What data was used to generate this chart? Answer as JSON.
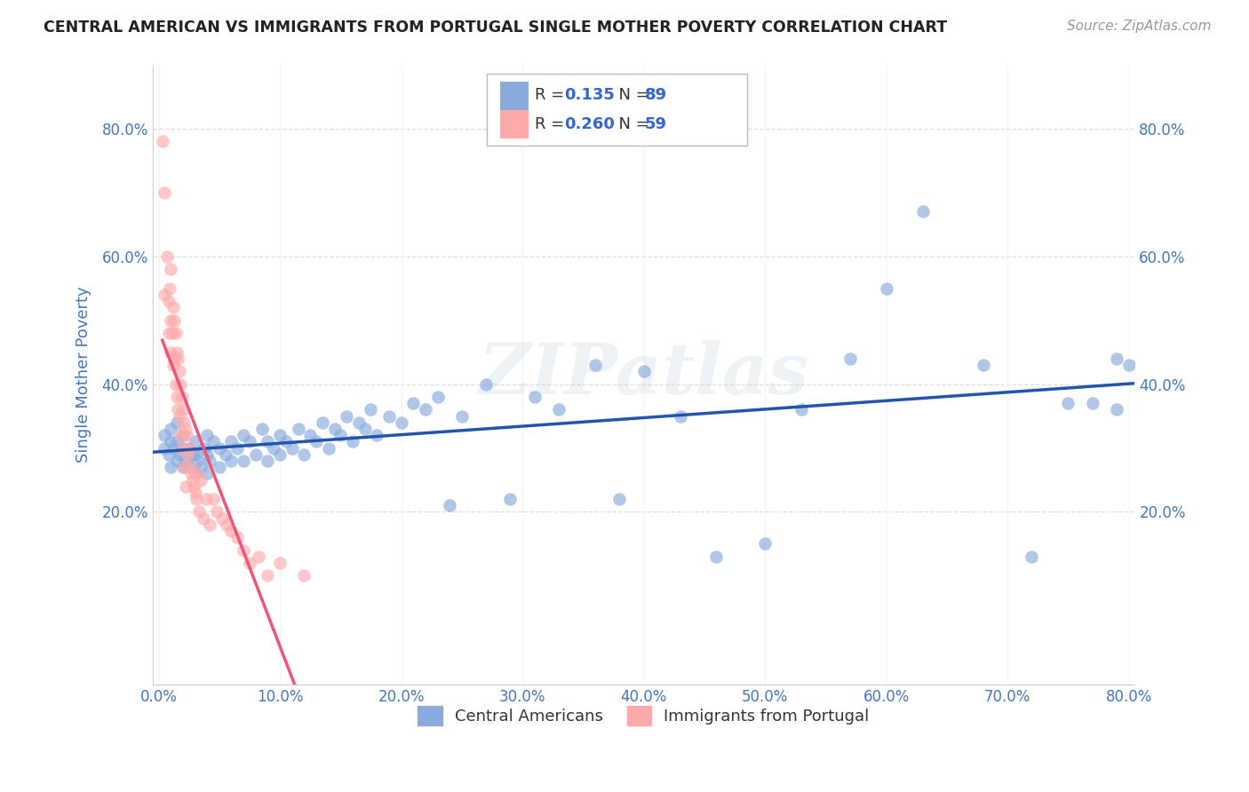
{
  "title": "CENTRAL AMERICAN VS IMMIGRANTS FROM PORTUGAL SINGLE MOTHER POVERTY CORRELATION CHART",
  "source": "Source: ZipAtlas.com",
  "ylabel": "Single Mother Poverty",
  "series1_label": "Central Americans",
  "series2_label": "Immigrants from Portugal",
  "series1_color": "#88AADD",
  "series2_color": "#FFAAAA",
  "series1_line_color": "#2255AA",
  "series2_line_color": "#EE5577",
  "series1_R": 0.135,
  "series1_N": 89,
  "series2_R": 0.26,
  "series2_N": 59,
  "xlim": [
    -0.005,
    0.805
  ],
  "ylim": [
    -0.07,
    0.9
  ],
  "xticks": [
    0.0,
    0.1,
    0.2,
    0.3,
    0.4,
    0.5,
    0.6,
    0.7,
    0.8
  ],
  "yticks": [
    0.2,
    0.4,
    0.6,
    0.8
  ],
  "watermark": "ZIPatlas",
  "series1_x": [
    0.005,
    0.005,
    0.008,
    0.01,
    0.01,
    0.01,
    0.012,
    0.015,
    0.015,
    0.015,
    0.018,
    0.02,
    0.02,
    0.02,
    0.022,
    0.025,
    0.025,
    0.028,
    0.03,
    0.03,
    0.03,
    0.032,
    0.035,
    0.038,
    0.04,
    0.04,
    0.04,
    0.042,
    0.045,
    0.05,
    0.05,
    0.055,
    0.06,
    0.06,
    0.065,
    0.07,
    0.07,
    0.075,
    0.08,
    0.085,
    0.09,
    0.09,
    0.095,
    0.1,
    0.1,
    0.105,
    0.11,
    0.115,
    0.12,
    0.125,
    0.13,
    0.135,
    0.14,
    0.145,
    0.15,
    0.155,
    0.16,
    0.165,
    0.17,
    0.175,
    0.18,
    0.19,
    0.2,
    0.21,
    0.22,
    0.23,
    0.24,
    0.25,
    0.27,
    0.29,
    0.31,
    0.33,
    0.36,
    0.38,
    0.4,
    0.43,
    0.46,
    0.5,
    0.53,
    0.57,
    0.6,
    0.63,
    0.68,
    0.72,
    0.75,
    0.77,
    0.79,
    0.79,
    0.8
  ],
  "series1_y": [
    0.3,
    0.32,
    0.29,
    0.27,
    0.31,
    0.33,
    0.3,
    0.28,
    0.31,
    0.34,
    0.29,
    0.27,
    0.3,
    0.32,
    0.28,
    0.27,
    0.3,
    0.29,
    0.26,
    0.29,
    0.31,
    0.28,
    0.27,
    0.3,
    0.26,
    0.29,
    0.32,
    0.28,
    0.31,
    0.27,
    0.3,
    0.29,
    0.28,
    0.31,
    0.3,
    0.28,
    0.32,
    0.31,
    0.29,
    0.33,
    0.28,
    0.31,
    0.3,
    0.29,
    0.32,
    0.31,
    0.3,
    0.33,
    0.29,
    0.32,
    0.31,
    0.34,
    0.3,
    0.33,
    0.32,
    0.35,
    0.31,
    0.34,
    0.33,
    0.36,
    0.32,
    0.35,
    0.34,
    0.37,
    0.36,
    0.38,
    0.21,
    0.35,
    0.4,
    0.22,
    0.38,
    0.36,
    0.43,
    0.22,
    0.42,
    0.35,
    0.13,
    0.15,
    0.36,
    0.44,
    0.55,
    0.67,
    0.43,
    0.13,
    0.37,
    0.37,
    0.36,
    0.44,
    0.43
  ],
  "series2_x": [
    0.003,
    0.005,
    0.005,
    0.007,
    0.008,
    0.008,
    0.009,
    0.01,
    0.01,
    0.01,
    0.011,
    0.012,
    0.012,
    0.013,
    0.013,
    0.014,
    0.014,
    0.015,
    0.015,
    0.016,
    0.016,
    0.017,
    0.017,
    0.018,
    0.018,
    0.019,
    0.02,
    0.02,
    0.021,
    0.021,
    0.022,
    0.022,
    0.023,
    0.024,
    0.025,
    0.026,
    0.027,
    0.028,
    0.029,
    0.03,
    0.031,
    0.032,
    0.033,
    0.035,
    0.037,
    0.039,
    0.042,
    0.045,
    0.048,
    0.052,
    0.056,
    0.06,
    0.065,
    0.07,
    0.075,
    0.082,
    0.09,
    0.1,
    0.12
  ],
  "series2_y": [
    0.78,
    0.7,
    0.54,
    0.6,
    0.53,
    0.48,
    0.55,
    0.5,
    0.45,
    0.58,
    0.48,
    0.52,
    0.43,
    0.5,
    0.44,
    0.48,
    0.4,
    0.45,
    0.38,
    0.44,
    0.36,
    0.42,
    0.35,
    0.4,
    0.32,
    0.38,
    0.36,
    0.3,
    0.34,
    0.27,
    0.33,
    0.24,
    0.32,
    0.29,
    0.3,
    0.27,
    0.26,
    0.25,
    0.24,
    0.23,
    0.22,
    0.26,
    0.2,
    0.25,
    0.19,
    0.22,
    0.18,
    0.22,
    0.2,
    0.19,
    0.18,
    0.17,
    0.16,
    0.14,
    0.12,
    0.13,
    0.1,
    0.12,
    0.1
  ]
}
